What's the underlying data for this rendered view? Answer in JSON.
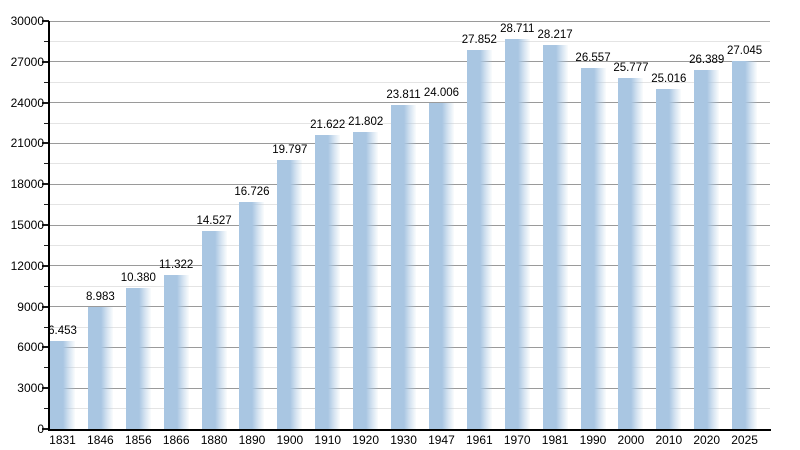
{
  "chart_data": {
    "type": "bar",
    "title": "",
    "categories": [
      "1831",
      "1846",
      "1856",
      "1866",
      "1880",
      "1890",
      "1900",
      "1910",
      "1920",
      "1930",
      "1947",
      "1961",
      "1970",
      "1981",
      "1990",
      "2000",
      "2010",
      "2020",
      "2025"
    ],
    "values": [
      6453,
      8983,
      10380,
      11322,
      14527,
      16726,
      19797,
      21622,
      21802,
      23811,
      24006,
      27852,
      28711,
      28217,
      26557,
      25777,
      25016,
      26389,
      27045
    ],
    "value_labels": [
      "6.453",
      "8.983",
      "10.380",
      "11.322",
      "14.527",
      "16.726",
      "19.797",
      "21.622",
      "21.802",
      "23.811",
      "24.006",
      "27.852",
      "28.711",
      "28.217",
      "26.557",
      "25.777",
      "25.016",
      "26.389",
      "27.045"
    ],
    "xlabel": "",
    "ylabel": "",
    "ylim": [
      0,
      30000
    ],
    "ytick_interval": 3000,
    "yminor_interval": 1500,
    "y_tick_labels": [
      "0",
      "3000",
      "6000",
      "9000",
      "12000",
      "15000",
      "18000",
      "21000",
      "24000",
      "27000",
      "30000"
    ],
    "grid": "on",
    "legend": "none",
    "colors": {
      "bar": "#a9c6e2",
      "grid_major": "#9a9a9a",
      "grid_minor": "#e4e4e4",
      "axis": "#000000",
      "text": "#000000",
      "background": "#ffffff"
    }
  }
}
